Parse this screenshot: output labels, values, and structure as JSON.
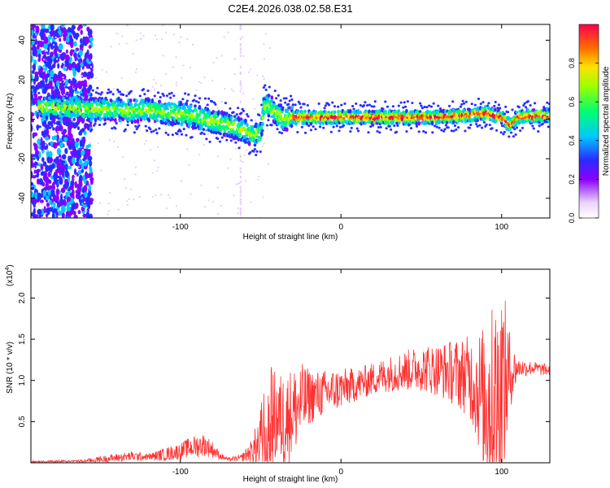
{
  "title": "C2E4.2026.038.02.58.E31",
  "chart_data": [
    {
      "type": "heatmap",
      "xlabel": "Height of straight line (km)",
      "ylabel": "Frequency (Hz)",
      "xlim": [
        -193,
        130
      ],
      "ylim": [
        -50,
        48
      ],
      "xticks": [
        -100,
        0,
        100
      ],
      "yticks": [
        -40,
        -20,
        0,
        20,
        40
      ],
      "colorbar": {
        "label": "Normalized spectral amplitude",
        "range": [
          0,
          1
        ],
        "ticks": [
          "0.0",
          "0.2",
          "0.4",
          "0.6",
          "0.8"
        ],
        "tick_values": [
          0,
          0.2,
          0.4,
          0.6,
          0.8
        ]
      },
      "ridge": {
        "x": [
          -190,
          -175,
          -160,
          -150,
          -140,
          -130,
          -120,
          -110,
          -100,
          -90,
          -80,
          -70,
          -60,
          -55,
          -50,
          -48,
          -45,
          -40,
          -35,
          -30,
          -20,
          0,
          20,
          40,
          60,
          80,
          90,
          95,
          100,
          105,
          110,
          130
        ],
        "freq": [
          6,
          6,
          5,
          5,
          5,
          4,
          5,
          3,
          3,
          1,
          -1,
          -3,
          -6,
          -8,
          -7,
          6,
          7,
          3,
          0,
          1,
          1,
          1,
          1,
          1,
          1,
          2,
          3,
          2,
          1,
          -3,
          1,
          2
        ]
      }
    },
    {
      "type": "line",
      "xlabel": "Height of straight line (km)",
      "ylabel": "SNR (10 * v/v)",
      "multiplier": "(x10",
      "multiplier_exp": "4",
      "multiplier_close": ")",
      "xlim": [
        -193,
        130
      ],
      "ylim": [
        0,
        2.35
      ],
      "xticks": [
        -100,
        0,
        100
      ],
      "yticks": [
        0.5,
        1.0,
        1.5,
        2.0
      ],
      "yticklabels": [
        "0.5",
        "1.0",
        "1.5",
        "2.0"
      ],
      "color": "#ff3030",
      "envelope": {
        "x": [
          -193,
          -160,
          -150,
          -140,
          -130,
          -120,
          -110,
          -100,
          -95,
          -90,
          -85,
          -80,
          -75,
          -70,
          -62,
          -55,
          -50,
          -46,
          -44,
          -40,
          -35,
          -30,
          -25,
          -20,
          -15,
          -10,
          0,
          10,
          20,
          30,
          40,
          50,
          60,
          70,
          80,
          85,
          90,
          95,
          98,
          100,
          103,
          106,
          110,
          120,
          130
        ],
        "base": [
          0.01,
          0.02,
          0.04,
          0.06,
          0.08,
          0.07,
          0.1,
          0.14,
          0.18,
          0.2,
          0.22,
          0.16,
          0.08,
          0.04,
          0.06,
          0.15,
          0.25,
          0.4,
          0.5,
          0.55,
          0.5,
          0.62,
          0.72,
          0.8,
          0.82,
          0.85,
          0.9,
          0.95,
          1.02,
          1.08,
          1.12,
          1.15,
          1.13,
          1.1,
          1.05,
          0.9,
          0.75,
          0.7,
          0.75,
          0.9,
          1.0,
          1.1,
          1.15,
          1.15,
          1.12
        ],
        "amp": [
          0.01,
          0.02,
          0.04,
          0.05,
          0.06,
          0.04,
          0.08,
          0.1,
          0.12,
          0.14,
          0.14,
          0.1,
          0.04,
          0.02,
          0.04,
          0.15,
          0.45,
          0.8,
          0.7,
          0.55,
          0.6,
          0.55,
          0.5,
          0.35,
          0.3,
          0.28,
          0.25,
          0.2,
          0.2,
          0.22,
          0.25,
          0.28,
          0.32,
          0.4,
          0.5,
          0.7,
          1.0,
          1.25,
          1.3,
          1.3,
          0.9,
          0.4,
          0.12,
          0.08,
          0.07
        ]
      }
    }
  ]
}
